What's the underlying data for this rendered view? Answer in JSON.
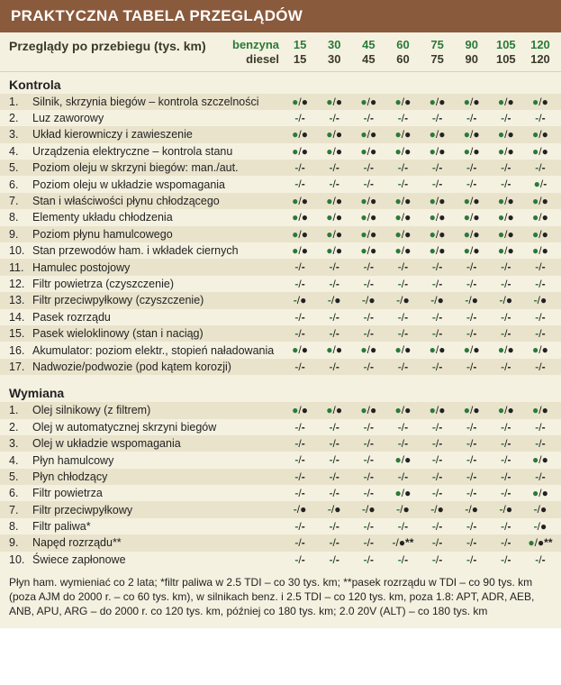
{
  "title": "PRAKTYCZNA TABELA PRZEGLĄDÓW",
  "header_label": "Przeglądy po przebiegu (tys. km)",
  "fuel_labels": {
    "benz": "benzyna",
    "diesel": "diesel"
  },
  "intervals": [
    {
      "b": "15",
      "d": "15"
    },
    {
      "b": "30",
      "d": "30"
    },
    {
      "b": "45",
      "d": "45"
    },
    {
      "b": "60",
      "d": "60"
    },
    {
      "b": "75",
      "d": "75"
    },
    {
      "b": "90",
      "d": "90"
    },
    {
      "b": "105",
      "d": "105"
    },
    {
      "b": "120",
      "d": "120"
    }
  ],
  "section1": "Kontrola",
  "kontrola": [
    {
      "n": "1.",
      "t": "Silnik, skrzynia biegów – kontrola szczelności",
      "c": [
        "dd",
        "dd",
        "dd",
        "dd",
        "dd",
        "dd",
        "dd",
        "dd"
      ]
    },
    {
      "n": "2.",
      "t": "Luz zaworowy",
      "c": [
        "nn",
        "nn",
        "nn",
        "nn",
        "nn",
        "nn",
        "nn",
        "nn"
      ]
    },
    {
      "n": "3.",
      "t": "Układ kierowniczy i zawieszenie",
      "c": [
        "dd",
        "dd",
        "dd",
        "dd",
        "dd",
        "dd",
        "dd",
        "dd"
      ]
    },
    {
      "n": "4.",
      "t": "Urządzenia elektryczne – kontrola stanu",
      "c": [
        "dd",
        "dd",
        "dd",
        "dd",
        "dd",
        "dd",
        "dd",
        "dd"
      ]
    },
    {
      "n": "5.",
      "t": "Poziom oleju w skrzyni biegów: man./aut.",
      "c": [
        "nn",
        "nn",
        "nn",
        "nn",
        "nn",
        "nn",
        "nn",
        "nn"
      ]
    },
    {
      "n": "6.",
      "t": "Poziom oleju w układzie wspomagania",
      "c": [
        "nn",
        "nn",
        "nn",
        "nn",
        "nn",
        "nn",
        "nn",
        "dn"
      ]
    },
    {
      "n": "7.",
      "t": "Stan i właściwości płynu chłodzącego",
      "c": [
        "dd",
        "dd",
        "dd",
        "dd",
        "dd",
        "dd",
        "dd",
        "dd"
      ]
    },
    {
      "n": "8.",
      "t": "Elementy układu chłodzenia",
      "c": [
        "dd",
        "dd",
        "dd",
        "dd",
        "dd",
        "dd",
        "dd",
        "dd"
      ]
    },
    {
      "n": "9.",
      "t": "Poziom płynu hamulcowego",
      "c": [
        "dd",
        "dd",
        "dd",
        "dd",
        "dd",
        "dd",
        "dd",
        "dd"
      ]
    },
    {
      "n": "10.",
      "t": "Stan przewodów ham. i wkładek ciernych",
      "c": [
        "dd",
        "dd",
        "dd",
        "dd",
        "dd",
        "dd",
        "dd",
        "dd"
      ]
    },
    {
      "n": "11.",
      "t": "Hamulec postojowy",
      "c": [
        "nn",
        "nn",
        "nn",
        "nn",
        "nn",
        "nn",
        "nn",
        "nn"
      ]
    },
    {
      "n": "12.",
      "t": "Filtr powietrza (czyszczenie)",
      "c": [
        "nn",
        "nn",
        "nn",
        "nn",
        "nn",
        "nn",
        "nn",
        "nn"
      ]
    },
    {
      "n": "13.",
      "t": "Filtr przeciwpyłkowy (czyszczenie)",
      "c": [
        "nd",
        "nd",
        "nd",
        "nd",
        "nd",
        "nd",
        "nd",
        "nd"
      ]
    },
    {
      "n": "14.",
      "t": "Pasek rozrządu",
      "c": [
        "nn",
        "nn",
        "nn",
        "nn",
        "nn",
        "nn",
        "nn",
        "nn"
      ]
    },
    {
      "n": "15.",
      "t": "Pasek wieloklinowy (stan i naciąg)",
      "c": [
        "nn",
        "nn",
        "nn",
        "nn",
        "nn",
        "nn",
        "nn",
        "nn"
      ]
    },
    {
      "n": "16.",
      "t": "Akumulator: poziom elektr., stopień naładowania",
      "c": [
        "dd",
        "dd",
        "dd",
        "dd",
        "dd",
        "dd",
        "dd",
        "dd"
      ]
    },
    {
      "n": "17.",
      "t": "Nadwozie/podwozie (pod kątem korozji)",
      "c": [
        "nn",
        "nn",
        "nn",
        "nn",
        "nn",
        "nn",
        "nn",
        "nn"
      ]
    }
  ],
  "section2": "Wymiana",
  "wymiana": [
    {
      "n": "1.",
      "t": "Olej silnikowy (z filtrem)",
      "c": [
        "dd",
        "dd",
        "dd",
        "dd",
        "dd",
        "dd",
        "dd",
        "dd"
      ]
    },
    {
      "n": "2.",
      "t": "Olej w automatycznej skrzyni biegów",
      "c": [
        "nn",
        "nn",
        "nn",
        "nn",
        "nn",
        "nn",
        "nn",
        "nn"
      ]
    },
    {
      "n": "3.",
      "t": "Olej w układzie wspomagania",
      "c": [
        "nn",
        "nn",
        "nn",
        "nn",
        "nn",
        "nn",
        "nn",
        "nn"
      ]
    },
    {
      "n": "4.",
      "t": "Płyn hamulcowy",
      "c": [
        "nn",
        "nn",
        "nn",
        "dd",
        "nn",
        "nn",
        "nn",
        "dd"
      ]
    },
    {
      "n": "5.",
      "t": "Płyn chłodzący",
      "c": [
        "nn",
        "nn",
        "nn",
        "nn",
        "nn",
        "nn",
        "nn",
        "nn"
      ]
    },
    {
      "n": "6.",
      "t": "Filtr powietrza",
      "c": [
        "nn",
        "nn",
        "nn",
        "dd",
        "nn",
        "nn",
        "nn",
        "dd"
      ]
    },
    {
      "n": "7.",
      "t": "Filtr przeciwpyłkowy",
      "c": [
        "nd",
        "nd",
        "nd",
        "nd",
        "nd",
        "nd",
        "nd",
        "nd"
      ]
    },
    {
      "n": "8.",
      "t": "Filtr paliwa*",
      "c": [
        "nn",
        "nn",
        "nn",
        "nn",
        "nn",
        "nn",
        "nn",
        "nd"
      ]
    },
    {
      "n": "9.",
      "t": "Napęd rozrządu**",
      "c": [
        "nn",
        "nn",
        "nn",
        "nD",
        "nn",
        "nn",
        "nn",
        "dD"
      ]
    },
    {
      "n": "10.",
      "t": "Świece zapłonowe",
      "c": [
        "nn",
        "nn",
        "nn",
        "nn",
        "nn",
        "nn",
        "nn",
        "nn"
      ]
    }
  ],
  "footnote": "Płyn ham. wymieniać co 2 lata; *filtr paliwa w 2.5 TDI – co 30 tys. km; **pasek rozrządu w TDI – co 90 tys. km (poza AJM do 2000 r. – co 60 tys. km), w silnikach benz. i 2.5 TDI – co 120 tys. km, poza 1.8: APT, ADR, AEB, ANB, APU, ARG – do 2000 r. co 120 tys. km, później co 180 tys. km; 2.0 20V (ALT) – co 180 tys. km",
  "colors": {
    "title_bg": "#8a5a3c",
    "title_fg": "#ffffff",
    "page_bg": "#f5f1e0",
    "row_alt": "#e9e3cc",
    "benz": "#2a7a3a",
    "diesel": "#222222"
  }
}
